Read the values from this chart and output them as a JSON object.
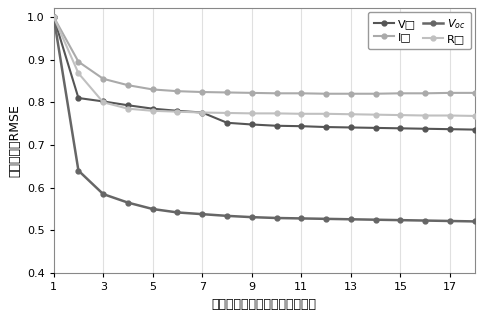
{
  "x": [
    1,
    2,
    3,
    4,
    5,
    6,
    7,
    8,
    9,
    10,
    11,
    12,
    13,
    14,
    15,
    16,
    17,
    18
  ],
  "series": {
    "V": {
      "y": [
        1.0,
        0.81,
        0.802,
        0.793,
        0.785,
        0.78,
        0.776,
        0.752,
        0.748,
        0.745,
        0.744,
        0.742,
        0.741,
        0.74,
        0.739,
        0.738,
        0.737,
        0.736
      ],
      "color": "#555555",
      "label": "V□",
      "linewidth": 1.5,
      "markersize": 3.5
    },
    "I": {
      "y": [
        1.0,
        0.895,
        0.855,
        0.84,
        0.83,
        0.826,
        0.824,
        0.823,
        0.822,
        0.821,
        0.821,
        0.82,
        0.82,
        0.82,
        0.821,
        0.821,
        0.822,
        0.822
      ],
      "color": "#aaaaaa",
      "label": "I□",
      "linewidth": 1.5,
      "markersize": 3.5
    },
    "Voc": {
      "y": [
        1.0,
        0.64,
        0.585,
        0.565,
        0.55,
        0.542,
        0.538,
        0.534,
        0.531,
        0.529,
        0.528,
        0.527,
        0.526,
        0.525,
        0.524,
        0.523,
        0.522,
        0.521
      ],
      "color": "#666666",
      "label": "V_oc",
      "linewidth": 1.8,
      "markersize": 3.5
    },
    "R": {
      "y": [
        1.0,
        0.868,
        0.8,
        0.785,
        0.78,
        0.778,
        0.776,
        0.775,
        0.774,
        0.774,
        0.773,
        0.773,
        0.772,
        0.771,
        0.77,
        0.769,
        0.769,
        0.768
      ],
      "color": "#c0c0c0",
      "label": "R□",
      "linewidth": 1.5,
      "markersize": 3.5
    }
  },
  "xlabel": "不同辐照度水平的拟合样本数量",
  "ylabel": "归一化平均RMSE",
  "xlim": [
    1,
    18
  ],
  "ylim": [
    0.4,
    1.02
  ],
  "xticks": [
    1,
    3,
    5,
    7,
    9,
    11,
    13,
    15,
    17
  ],
  "yticks": [
    0.4,
    0.5,
    0.6,
    0.7,
    0.8,
    0.9,
    1.0
  ],
  "grid_color": "#e0e0e0",
  "bg_color": "#ffffff"
}
